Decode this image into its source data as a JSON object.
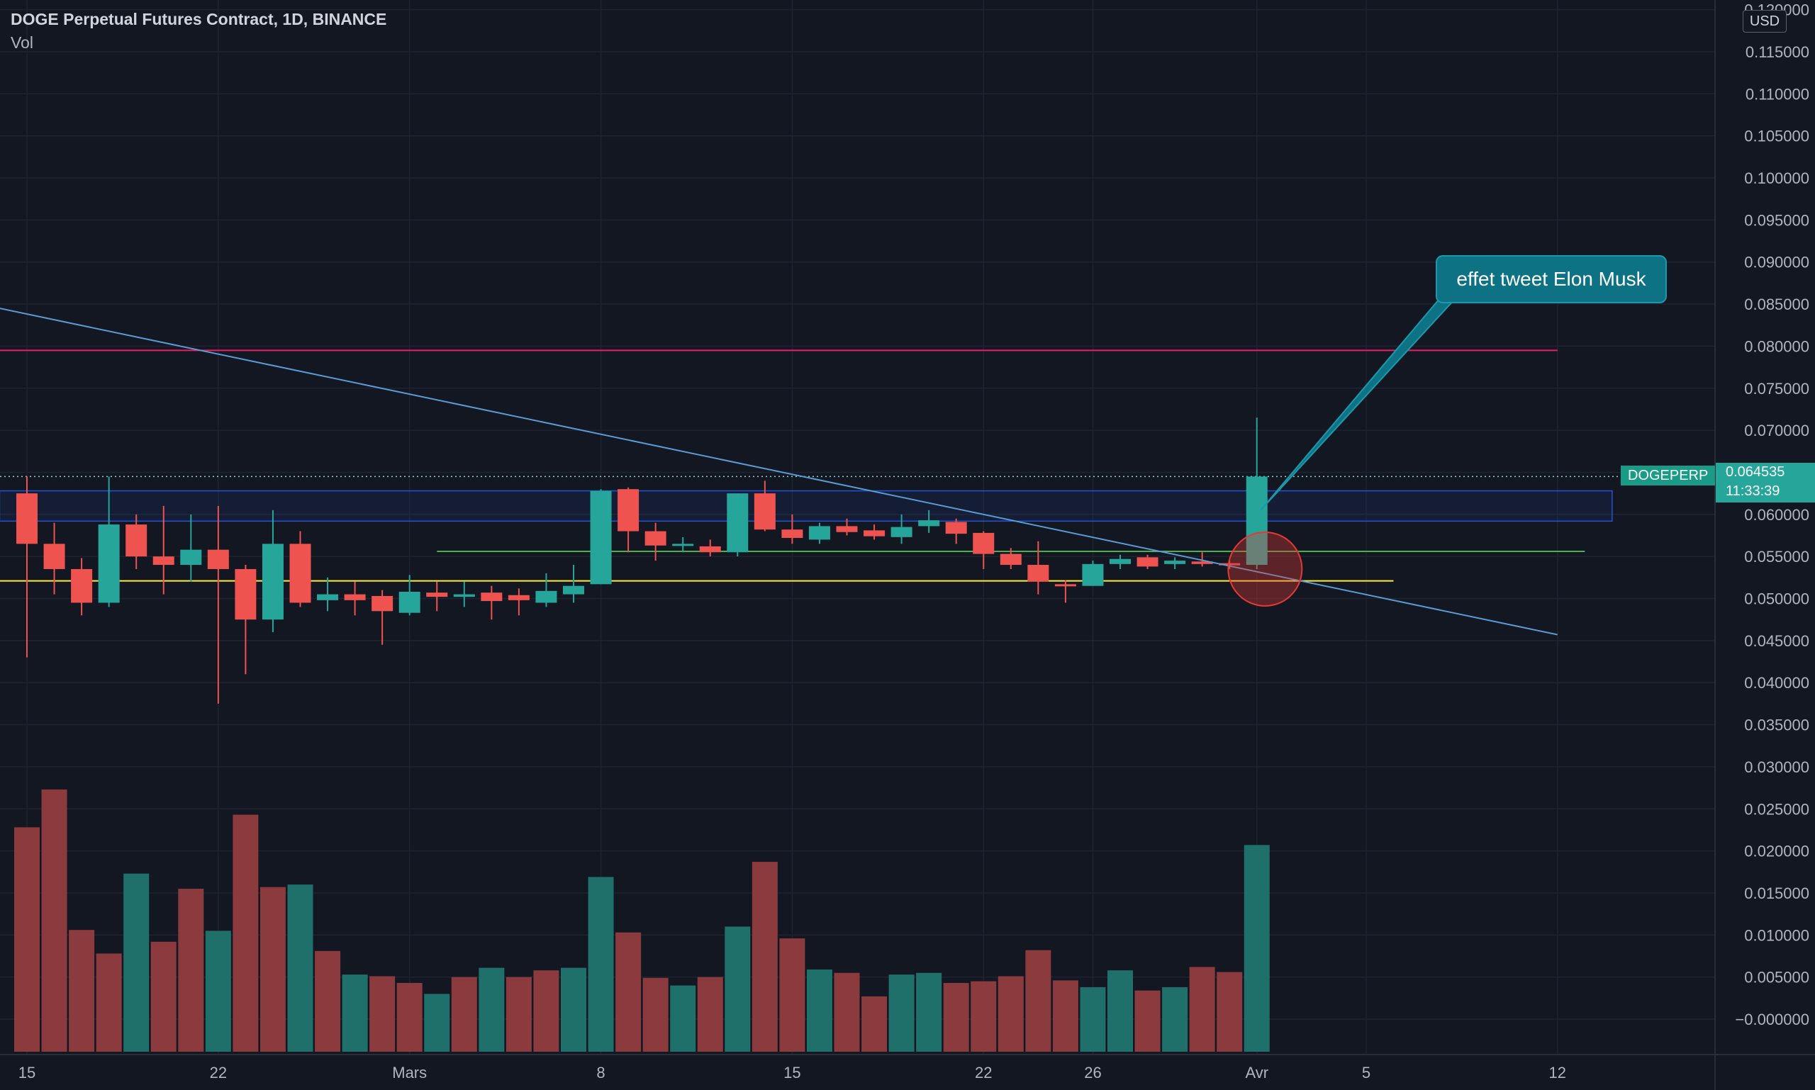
{
  "header": {
    "title": "DOGE Perpetual Futures Contract, 1D, BINANCE",
    "volume_label": "Vol",
    "currency": "USD"
  },
  "annotation": {
    "text": "effet tweet Elon Musk"
  },
  "last_price": {
    "symbol": "DOGEPERP",
    "value": "0.064535",
    "countdown": "11:33:39"
  },
  "colors": {
    "background": "#131722",
    "up": "#26a69a",
    "down": "#ef5350",
    "trendline": "#5b9bd5",
    "resistance": "#e91e63",
    "support_green": "#4caf50",
    "support_yellow": "#ffeb3b",
    "box": "#2962ff",
    "circle": "#e53935"
  },
  "chart_data": {
    "type": "candlestick",
    "y_axis": {
      "range": [
        -0.002,
        0.12
      ],
      "ticks": [
        "−0.000000",
        "0.005000",
        "0.010000",
        "0.015000",
        "0.020000",
        "0.025000",
        "0.030000",
        "0.035000",
        "0.040000",
        "0.045000",
        "0.050000",
        "0.055000",
        "0.060000",
        "0.065000",
        "0.070000",
        "0.075000",
        "0.080000",
        "0.085000",
        "0.090000",
        "0.095000",
        "0.100000",
        "0.105000",
        "0.110000",
        "0.115000",
        "0.120000"
      ],
      "tick_values": [
        0,
        0.005,
        0.01,
        0.015,
        0.02,
        0.025,
        0.03,
        0.035,
        0.04,
        0.045,
        0.05,
        0.055,
        0.06,
        0.065,
        0.07,
        0.075,
        0.08,
        0.085,
        0.09,
        0.095,
        0.1,
        0.105,
        0.11,
        0.115,
        0.12
      ]
    },
    "x_axis": {
      "tick_labels": [
        "15",
        "22",
        "Mars",
        "8",
        "15",
        "22",
        "26",
        "Avr",
        "5",
        "12"
      ],
      "tick_index": [
        0,
        7,
        14,
        21,
        28,
        35,
        39,
        45,
        49,
        56
      ]
    },
    "candles": [
      {
        "o": 0.0625,
        "h": 0.0645,
        "l": 0.043,
        "c": 0.0565
      },
      {
        "o": 0.0565,
        "h": 0.059,
        "l": 0.0505,
        "c": 0.0535
      },
      {
        "o": 0.0535,
        "h": 0.0548,
        "l": 0.048,
        "c": 0.0495
      },
      {
        "o": 0.0495,
        "h": 0.0645,
        "l": 0.049,
        "c": 0.0588
      },
      {
        "o": 0.0588,
        "h": 0.06,
        "l": 0.0535,
        "c": 0.055
      },
      {
        "o": 0.055,
        "h": 0.061,
        "l": 0.0505,
        "c": 0.054
      },
      {
        "o": 0.054,
        "h": 0.06,
        "l": 0.052,
        "c": 0.0558
      },
      {
        "o": 0.0558,
        "h": 0.061,
        "l": 0.0375,
        "c": 0.0535
      },
      {
        "o": 0.0535,
        "h": 0.054,
        "l": 0.041,
        "c": 0.0475
      },
      {
        "o": 0.0475,
        "h": 0.0605,
        "l": 0.046,
        "c": 0.0565
      },
      {
        "o": 0.0565,
        "h": 0.058,
        "l": 0.049,
        "c": 0.0495
      },
      {
        "o": 0.0498,
        "h": 0.0525,
        "l": 0.0485,
        "c": 0.0505
      },
      {
        "o": 0.0505,
        "h": 0.052,
        "l": 0.048,
        "c": 0.0498
      },
      {
        "o": 0.0503,
        "h": 0.051,
        "l": 0.0445,
        "c": 0.0485
      },
      {
        "o": 0.0483,
        "h": 0.0528,
        "l": 0.048,
        "c": 0.0508
      },
      {
        "o": 0.0507,
        "h": 0.052,
        "l": 0.0485,
        "c": 0.0502
      },
      {
        "o": 0.0502,
        "h": 0.052,
        "l": 0.049,
        "c": 0.0505
      },
      {
        "o": 0.0507,
        "h": 0.0515,
        "l": 0.0475,
        "c": 0.0497
      },
      {
        "o": 0.0504,
        "h": 0.0512,
        "l": 0.048,
        "c": 0.0498
      },
      {
        "o": 0.0495,
        "h": 0.053,
        "l": 0.049,
        "c": 0.0509
      },
      {
        "o": 0.0505,
        "h": 0.054,
        "l": 0.0495,
        "c": 0.0515
      },
      {
        "o": 0.0517,
        "h": 0.063,
        "l": 0.0517,
        "c": 0.0628
      },
      {
        "o": 0.063,
        "h": 0.0632,
        "l": 0.0555,
        "c": 0.058
      },
      {
        "o": 0.058,
        "h": 0.059,
        "l": 0.0545,
        "c": 0.0563
      },
      {
        "o": 0.0563,
        "h": 0.0573,
        "l": 0.0555,
        "c": 0.0565
      },
      {
        "o": 0.0562,
        "h": 0.057,
        "l": 0.055,
        "c": 0.0555
      },
      {
        "o": 0.0555,
        "h": 0.0625,
        "l": 0.055,
        "c": 0.0625
      },
      {
        "o": 0.0625,
        "h": 0.064,
        "l": 0.058,
        "c": 0.0582
      },
      {
        "o": 0.0582,
        "h": 0.06,
        "l": 0.0565,
        "c": 0.0572
      },
      {
        "o": 0.057,
        "h": 0.059,
        "l": 0.0565,
        "c": 0.0586
      },
      {
        "o": 0.0586,
        "h": 0.0595,
        "l": 0.0575,
        "c": 0.0579
      },
      {
        "o": 0.0581,
        "h": 0.0588,
        "l": 0.057,
        "c": 0.0574
      },
      {
        "o": 0.0573,
        "h": 0.06,
        "l": 0.0565,
        "c": 0.0585
      },
      {
        "o": 0.0586,
        "h": 0.0605,
        "l": 0.0578,
        "c": 0.0593
      },
      {
        "o": 0.0591,
        "h": 0.0595,
        "l": 0.0565,
        "c": 0.0577
      },
      {
        "o": 0.0578,
        "h": 0.058,
        "l": 0.0535,
        "c": 0.0553
      },
      {
        "o": 0.0553,
        "h": 0.056,
        "l": 0.0535,
        "c": 0.054
      },
      {
        "o": 0.054,
        "h": 0.0568,
        "l": 0.0505,
        "c": 0.052
      },
      {
        "o": 0.0517,
        "h": 0.0522,
        "l": 0.0495,
        "c": 0.0515
      },
      {
        "o": 0.0515,
        "h": 0.0545,
        "l": 0.0515,
        "c": 0.0541
      },
      {
        "o": 0.0541,
        "h": 0.0552,
        "l": 0.0535,
        "c": 0.0547
      },
      {
        "o": 0.0549,
        "h": 0.0552,
        "l": 0.0535,
        "c": 0.0538
      },
      {
        "o": 0.0541,
        "h": 0.0549,
        "l": 0.0535,
        "c": 0.0545
      },
      {
        "o": 0.0544,
        "h": 0.0555,
        "l": 0.0538,
        "c": 0.0541
      },
      {
        "o": 0.0542,
        "h": 0.0545,
        "l": 0.0535,
        "c": 0.054
      },
      {
        "o": 0.054,
        "h": 0.0715,
        "l": 0.0535,
        "c": 0.0645
      }
    ],
    "volume": [
      {
        "v": 0.0228,
        "up": false
      },
      {
        "v": 0.0273,
        "up": false
      },
      {
        "v": 0.0106,
        "up": false
      },
      {
        "v": 0.0078,
        "up": false
      },
      {
        "v": 0.0173,
        "up": true
      },
      {
        "v": 0.0092,
        "up": false
      },
      {
        "v": 0.0155,
        "up": false
      },
      {
        "v": 0.0105,
        "up": true
      },
      {
        "v": 0.0243,
        "up": false
      },
      {
        "v": 0.0157,
        "up": false
      },
      {
        "v": 0.016,
        "up": true
      },
      {
        "v": 0.0081,
        "up": false
      },
      {
        "v": 0.0053,
        "up": true
      },
      {
        "v": 0.0051,
        "up": false
      },
      {
        "v": 0.0043,
        "up": false
      },
      {
        "v": 0.003,
        "up": true
      },
      {
        "v": 0.005,
        "up": false
      },
      {
        "v": 0.0061,
        "up": true
      },
      {
        "v": 0.005,
        "up": false
      },
      {
        "v": 0.0058,
        "up": false
      },
      {
        "v": 0.0061,
        "up": true
      },
      {
        "v": 0.0169,
        "up": true
      },
      {
        "v": 0.0103,
        "up": false
      },
      {
        "v": 0.0049,
        "up": false
      },
      {
        "v": 0.004,
        "up": true
      },
      {
        "v": 0.005,
        "up": false
      },
      {
        "v": 0.011,
        "up": true
      },
      {
        "v": 0.0187,
        "up": false
      },
      {
        "v": 0.0096,
        "up": false
      },
      {
        "v": 0.0059,
        "up": true
      },
      {
        "v": 0.0055,
        "up": false
      },
      {
        "v": 0.0027,
        "up": false
      },
      {
        "v": 0.0053,
        "up": true
      },
      {
        "v": 0.0055,
        "up": true
      },
      {
        "v": 0.0043,
        "up": false
      },
      {
        "v": 0.0045,
        "up": false
      },
      {
        "v": 0.0051,
        "up": false
      },
      {
        "v": 0.0082,
        "up": false
      },
      {
        "v": 0.0046,
        "up": false
      },
      {
        "v": 0.0038,
        "up": true
      },
      {
        "v": 0.0058,
        "up": true
      },
      {
        "v": 0.0034,
        "up": false
      },
      {
        "v": 0.0038,
        "up": true
      },
      {
        "v": 0.0062,
        "up": false
      },
      {
        "v": 0.0056,
        "up": false
      },
      {
        "v": 0.0207,
        "up": true
      }
    ],
    "drawings": {
      "trendline": {
        "from": {
          "i": -1,
          "p": 0.0845
        },
        "to": {
          "i": 56,
          "p": 0.0457
        }
      },
      "resistance_line": {
        "price": 0.0795,
        "from_i": -1,
        "to_i": 56
      },
      "green_line": {
        "price": 0.0556,
        "from_i": 15,
        "to_i": 57
      },
      "yellow_line": {
        "price": 0.0521,
        "from_i": -1,
        "to_i": 50
      },
      "box": {
        "from_i": -1,
        "to_i": 58,
        "top": 0.0628,
        "bottom": 0.0592
      },
      "circle": {
        "i": 45.3,
        "p": 0.0535
      },
      "dotted_price_line": {
        "price": 0.0645
      }
    }
  }
}
